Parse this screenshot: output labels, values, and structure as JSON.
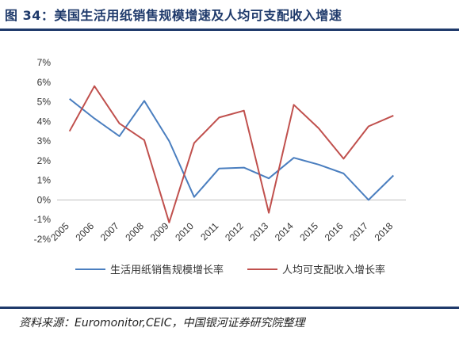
{
  "header": {
    "title": "图 34：美国生活用纸销售规模增速及人均可支配收入增速"
  },
  "source": "资料来源：Euromonitor,CEIC，中国银河证券研究院整理",
  "colors": {
    "brand": "#1f3a6b"
  },
  "chart_data": {
    "type": "line",
    "title": "",
    "xlabel": "",
    "ylabel": "",
    "categories": [
      "2005",
      "2006",
      "2007",
      "2008",
      "2009",
      "2010",
      "2011",
      "2012",
      "2013",
      "2014",
      "2015",
      "2016",
      "2017",
      "2018"
    ],
    "ylim": [
      -2,
      7
    ],
    "yticks": [
      "-2%",
      "-1%",
      "0%",
      "1%",
      "2%",
      "3%",
      "4%",
      "5%",
      "6%",
      "7%"
    ],
    "grid": false,
    "legend_position": "bottom",
    "series": [
      {
        "name": "生活用纸销售规模增长率",
        "color": "#4a7ebf",
        "values": [
          5.15,
          4.15,
          3.25,
          5.05,
          3.0,
          0.15,
          1.6,
          1.65,
          1.1,
          2.15,
          1.8,
          1.35,
          0.0,
          1.25
        ]
      },
      {
        "name": "人均可支配收入增长率",
        "color": "#c0504d",
        "values": [
          3.5,
          5.8,
          3.9,
          3.05,
          -1.15,
          2.9,
          4.2,
          4.55,
          -0.65,
          4.85,
          3.65,
          2.1,
          3.75,
          4.3
        ]
      }
    ]
  }
}
